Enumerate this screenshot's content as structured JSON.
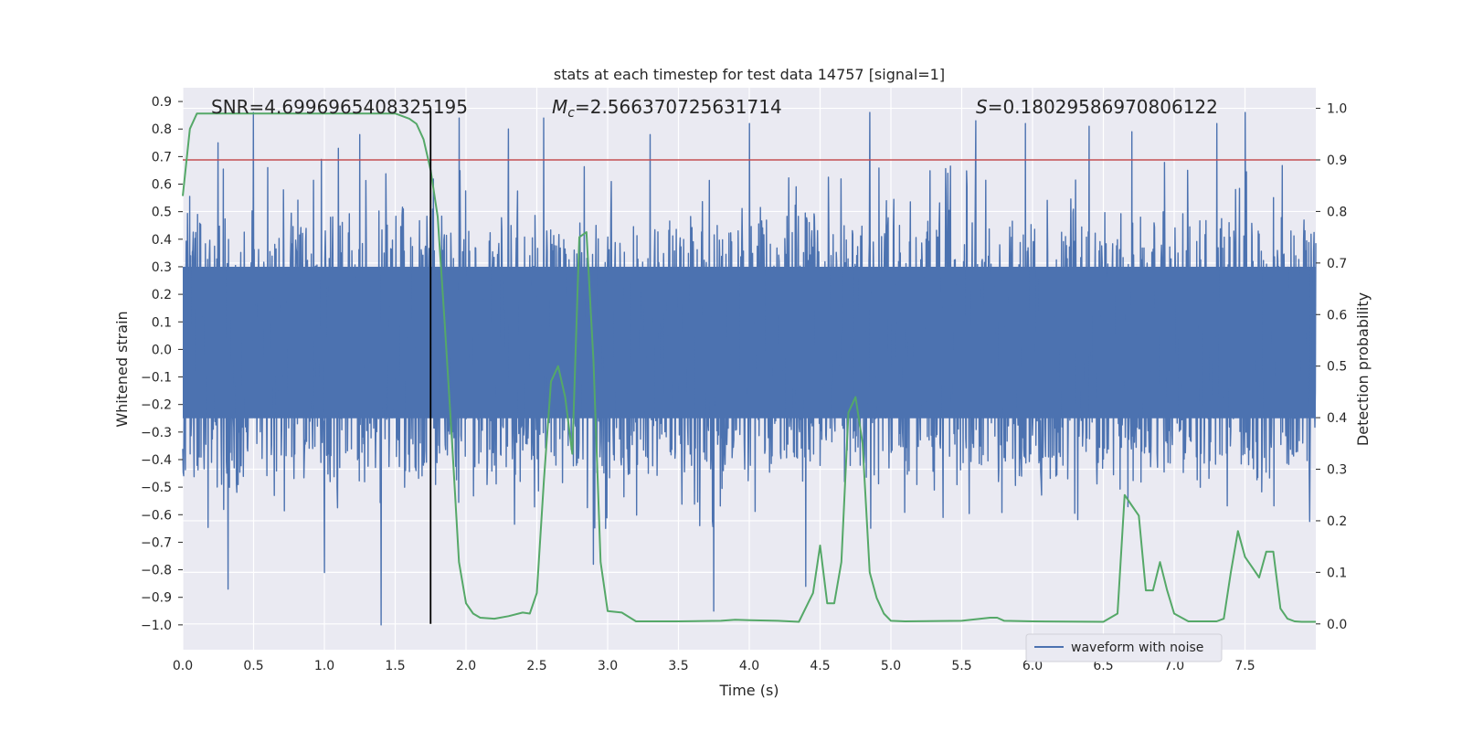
{
  "chart_data": {
    "type": "line",
    "title": "stats at each timestep for test data 14757 [signal=1]",
    "xlabel": "Time (s)",
    "ylabel_left": "Whitened strain",
    "ylabel_right": "Detection probability",
    "xlim": [
      0.0,
      8.0
    ],
    "ylim_left": [
      -1.09,
      0.95
    ],
    "ylim_right": [
      -0.05,
      1.04
    ],
    "x_ticks": [
      "0.0",
      "0.5",
      "1.0",
      "1.5",
      "2.0",
      "2.5",
      "3.0",
      "3.5",
      "4.0",
      "4.5",
      "5.0",
      "5.5",
      "6.0",
      "6.5",
      "7.0",
      "7.5"
    ],
    "y_left_ticks": [
      "0.9",
      "0.8",
      "0.7",
      "0.6",
      "0.5",
      "0.4",
      "0.3",
      "0.2",
      "0.1",
      "0.0",
      "−0.1",
      "−0.2",
      "−0.3",
      "−0.4",
      "−0.5",
      "−0.6",
      "−0.7",
      "−0.8",
      "−0.9",
      "−1.0"
    ],
    "y_right_ticks": [
      "1.0",
      "0.9",
      "0.8",
      "0.7",
      "0.6",
      "0.5",
      "0.4",
      "0.3",
      "0.2",
      "0.1",
      "0.0"
    ],
    "grid": true,
    "annotations": {
      "snr": "SNR=4.6996965408325195",
      "mc_symbol": "M",
      "mc_sub": "c",
      "mc_value": "=2.566370725631714",
      "s_symbol": "S",
      "s_value": "=0.18029586970806122"
    },
    "threshold": 0.9,
    "detection_time": 1.75,
    "series": [
      {
        "name": "waveform with noise",
        "axis": "left",
        "color": "#4c72b0",
        "description": "noisy whitened strain, approx. uniform band between -0.45 and 0.5 with spikes up to 0.87 and down to -1.0",
        "spikes": [
          [
            0.25,
            0.75
          ],
          [
            0.32,
            -0.87
          ],
          [
            0.5,
            0.86
          ],
          [
            0.6,
            0.66
          ],
          [
            0.98,
            0.69
          ],
          [
            1.0,
            -0.81
          ],
          [
            1.1,
            0.73
          ],
          [
            1.4,
            -1.0
          ],
          [
            1.25,
            0.78
          ],
          [
            1.95,
            0.84
          ],
          [
            2.3,
            0.8
          ],
          [
            2.55,
            0.84
          ],
          [
            2.9,
            -0.78
          ],
          [
            3.3,
            0.78
          ],
          [
            3.75,
            -0.95
          ],
          [
            4.0,
            0.82
          ],
          [
            4.4,
            -0.86
          ],
          [
            4.85,
            0.86
          ],
          [
            5.6,
            0.83
          ],
          [
            5.95,
            0.82
          ],
          [
            6.4,
            0.81
          ],
          [
            6.7,
            0.79
          ],
          [
            7.3,
            0.82
          ],
          [
            7.5,
            0.86
          ]
        ]
      },
      {
        "name": "detection probability",
        "axis": "right",
        "color": "#55a868",
        "x": [
          0.0,
          0.05,
          0.1,
          0.2,
          0.4,
          0.6,
          0.8,
          1.0,
          1.2,
          1.4,
          1.5,
          1.6,
          1.65,
          1.7,
          1.75,
          1.8,
          1.85,
          1.9,
          1.95,
          2.0,
          2.05,
          2.1,
          2.2,
          2.3,
          2.4,
          2.45,
          2.5,
          2.55,
          2.6,
          2.65,
          2.7,
          2.75,
          2.8,
          2.85,
          2.9,
          2.95,
          3.0,
          3.1,
          3.2,
          3.5,
          3.8,
          3.9,
          4.0,
          4.2,
          4.35,
          4.45,
          4.5,
          4.55,
          4.6,
          4.65,
          4.7,
          4.75,
          4.8,
          4.85,
          4.9,
          4.95,
          5.0,
          5.1,
          5.5,
          5.7,
          5.75,
          5.8,
          6.0,
          6.5,
          6.6,
          6.65,
          6.7,
          6.75,
          6.8,
          6.85,
          6.9,
          6.95,
          7.0,
          7.1,
          7.3,
          7.35,
          7.4,
          7.45,
          7.5,
          7.55,
          7.6,
          7.65,
          7.7,
          7.75,
          7.8,
          7.85,
          7.9,
          7.95,
          8.0
        ],
        "y": [
          0.83,
          0.96,
          0.99,
          0.99,
          0.99,
          0.99,
          0.99,
          0.99,
          0.99,
          0.99,
          0.99,
          0.98,
          0.97,
          0.94,
          0.88,
          0.79,
          0.58,
          0.36,
          0.12,
          0.04,
          0.02,
          0.012,
          0.01,
          0.015,
          0.022,
          0.02,
          0.06,
          0.28,
          0.47,
          0.5,
          0.44,
          0.33,
          0.75,
          0.76,
          0.51,
          0.12,
          0.025,
          0.022,
          0.005,
          0.005,
          0.006,
          0.008,
          0.007,
          0.006,
          0.004,
          0.06,
          0.152,
          0.04,
          0.04,
          0.12,
          0.41,
          0.44,
          0.35,
          0.1,
          0.05,
          0.02,
          0.006,
          0.005,
          0.006,
          0.012,
          0.012,
          0.006,
          0.005,
          0.004,
          0.02,
          0.25,
          0.23,
          0.21,
          0.065,
          0.065,
          0.12,
          0.065,
          0.02,
          0.005,
          0.005,
          0.01,
          0.1,
          0.18,
          0.13,
          0.11,
          0.09,
          0.14,
          0.14,
          0.03,
          0.01,
          0.005,
          0.004,
          0.004,
          0.004
        ]
      }
    ],
    "legend": {
      "entries": [
        "waveform with noise"
      ],
      "placement": "lower-right"
    }
  },
  "colors": {
    "plot_bg": "#eaeaf2",
    "grid": "#ffffff",
    "strain": "#4c72b0",
    "probability": "#55a868",
    "threshold": "#c44e52",
    "marker": "#000000"
  }
}
